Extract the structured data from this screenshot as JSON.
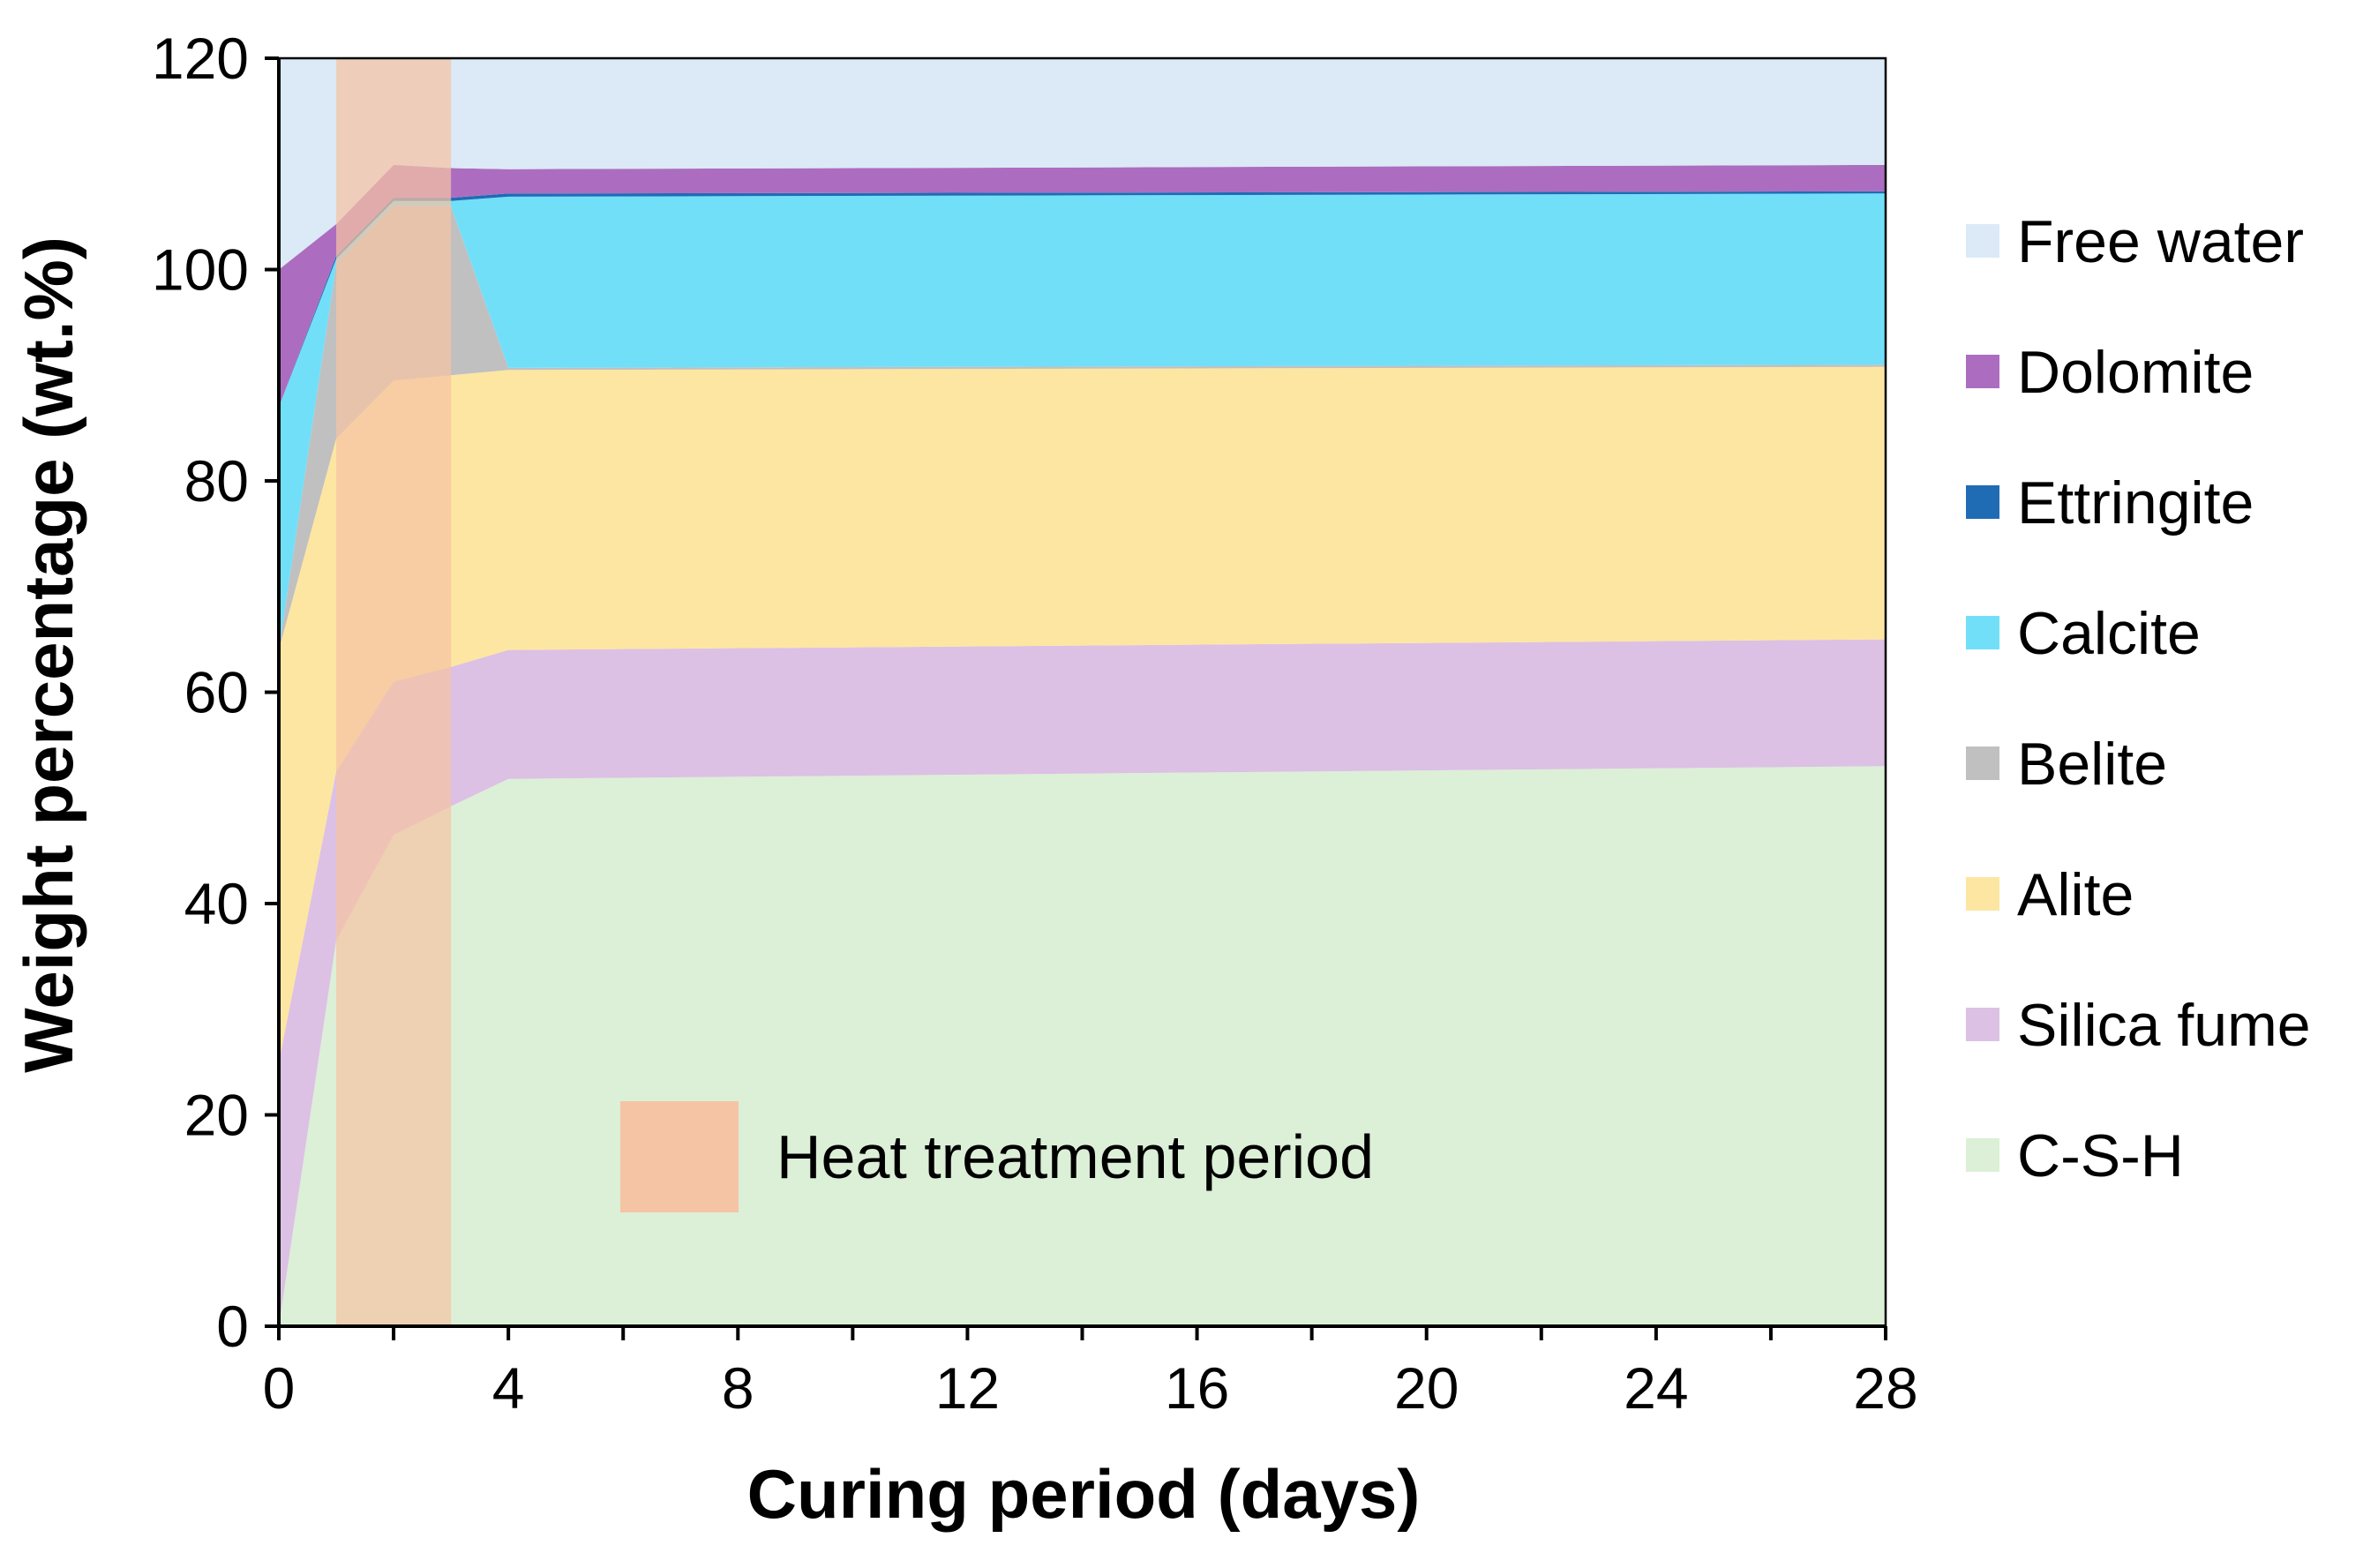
{
  "chart_data": {
    "type": "area",
    "stacked": true,
    "title": "",
    "xlabel": "Curing period (days)",
    "ylabel": "Weight percentage (wt.%)",
    "xlim": [
      0,
      28
    ],
    "ylim": [
      0,
      120
    ],
    "xticks": [
      0,
      4,
      8,
      12,
      16,
      20,
      24,
      28
    ],
    "yticks": [
      0,
      20,
      40,
      60,
      80,
      100,
      120
    ],
    "x": [
      0,
      1,
      2,
      3,
      4,
      28
    ],
    "series": [
      {
        "name": "C-S-H",
        "color": "#dcefd7",
        "values": [
          0,
          36.5,
          46.5,
          49.2,
          51.8,
          53.0
        ]
      },
      {
        "name": "Silica fume",
        "color": "#dcc1e4",
        "values": [
          25.0,
          16.0,
          14.5,
          13.2,
          12.2,
          12.0
        ]
      },
      {
        "name": "Alite",
        "color": "#fde6a1",
        "values": [
          39.0,
          31.5,
          28.5,
          27.6,
          26.5,
          25.8
        ]
      },
      {
        "name": "Belite",
        "color": "#c0c0c0",
        "values": [
          0,
          16.5,
          16.5,
          16.0,
          0.2,
          0.2
        ]
      },
      {
        "name": "Calcite",
        "color": "#72dff9",
        "values": [
          23.0,
          0.5,
          0.5,
          0.5,
          16.2,
          16.2
        ]
      },
      {
        "name": "Ettringite",
        "color": "#1f6cb5",
        "values": [
          0,
          0.3,
          0.3,
          0.3,
          0.3,
          0.2
        ]
      },
      {
        "name": "Dolomite",
        "color": "#ac6dc0",
        "values": [
          13.0,
          3.0,
          3.1,
          2.8,
          2.3,
          2.5
        ]
      },
      {
        "name": "Free water",
        "color": "#dbeaf6",
        "values": [
          20.0,
          15.7,
          10.1,
          10.4,
          10.5,
          10.1
        ]
      }
    ],
    "legend_order": [
      "Free water",
      "Dolomite",
      "Ettringite",
      "Calcite",
      "Belite",
      "Alite",
      "Silica fume",
      "C-S-H"
    ],
    "legend_position": "right",
    "annotation": {
      "label": "Heat treatment period",
      "x_range": [
        1,
        3
      ],
      "color": "#f5c4a4"
    }
  }
}
